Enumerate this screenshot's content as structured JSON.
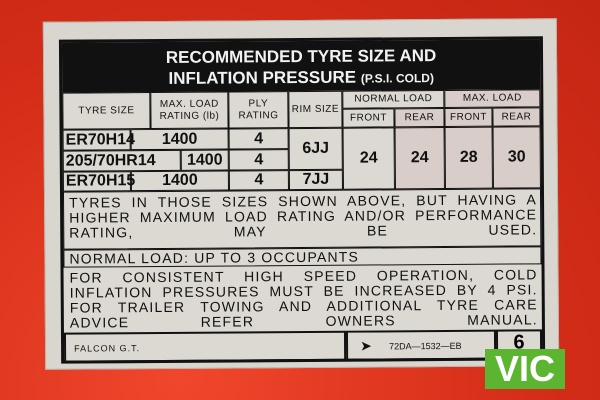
{
  "placard": {
    "title_line1": "RECOMMENDED TYRE SIZE AND",
    "title_line2": "INFLATION PRESSURE",
    "title_unit": "(P.S.I. COLD)",
    "headers": {
      "tyre_size": "TYRE SIZE",
      "max_load": "MAX. LOAD RATING (lb)",
      "ply": "PLY RATING",
      "rim": "RIM SIZE",
      "normal_load": "NORMAL LOAD",
      "max_load_group": "MAX. LOAD",
      "front": "FRONT",
      "rear": "REAR"
    },
    "rows": [
      {
        "tyre": "ER70H14",
        "load": "1400",
        "ply": "4"
      },
      {
        "tyre": "205/70HR14",
        "load": "1400",
        "ply": "4"
      },
      {
        "tyre": "ER70H15",
        "load": "1400",
        "ply": "4"
      }
    ],
    "rims": [
      "6JJ",
      "7JJ"
    ],
    "pressures": {
      "normal_front": "24",
      "normal_rear": "24",
      "max_front": "28",
      "max_rear": "30"
    },
    "note1": "TYRES IN THOSE SIZES SHOWN ABOVE, BUT HAVING A HIGHER MAXIMUM LOAD RATING AND/OR PERFORMANCE RATING, MAY BE USED.",
    "note2": "NORMAL LOAD: UP TO 3 OCCUPANTS",
    "note3": "FOR CONSISTENT HIGH SPEED OPERATION, COLD INFLATION PRESSURES MUST BE INCREASED BY 4 PSI. FOR TRAILER TOWING AND ADDITIONAL TYRE CARE ADVICE REFER OWNERS MANUAL.",
    "model": "FALCON G.T.",
    "part_number": "72DA—1532—EB",
    "arrow": "➤",
    "code": "6"
  },
  "badge": {
    "text": "VIC",
    "color": "#5cb531"
  },
  "colors": {
    "background": "#e2351f",
    "plate": "#d9d6cf"
  }
}
